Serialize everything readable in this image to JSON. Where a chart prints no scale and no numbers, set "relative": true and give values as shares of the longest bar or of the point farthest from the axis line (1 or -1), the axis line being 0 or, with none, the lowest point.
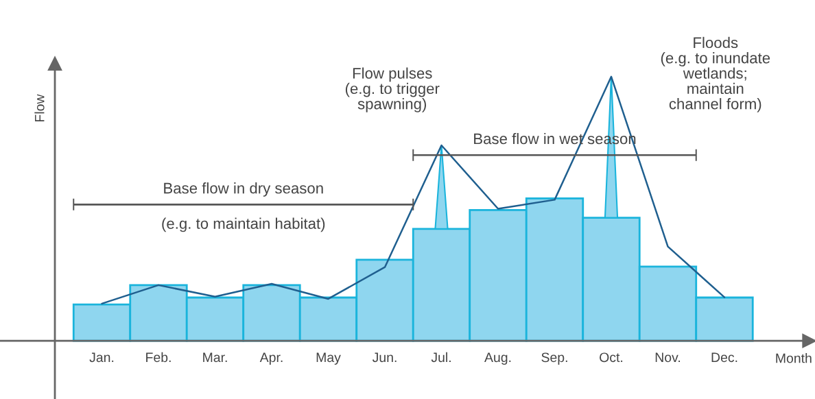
{
  "chart_data": {
    "type": "bar",
    "relative": true,
    "xlabel": "Month",
    "ylabel": "Flow",
    "categories": [
      "Jan.",
      "Feb.",
      "Mar.",
      "Apr.",
      "May",
      "Jun.",
      "Jul.",
      "Aug.",
      "Sep.",
      "Oct.",
      "Nov.",
      "Dec."
    ],
    "series": [
      {
        "color": "#8fd6ef",
        "values": [
          0.138,
          0.211,
          0.164,
          0.211,
          0.164,
          0.307,
          0.424,
          0.495,
          0.539,
          0.466,
          0.281,
          0.164
        ]
      },
      {
        "type": "line",
        "color": "#1f5f8f",
        "values": [
          0.141,
          0.211,
          0.167,
          0.216,
          0.159,
          0.279,
          0.74,
          0.5,
          0.534,
          1.0,
          0.357,
          0.165
        ]
      }
    ],
    "annotations": [
      "Base flow in dry season",
      "(e.g. to maintain habitat)",
      "Base flow in wet season",
      "Flow pulses\n(e.g. to trigger\nspawning)",
      "Floods\n(e.g. to inundate\nwetlands;\nmaintain\nchannel form)"
    ],
    "legend": false,
    "grid": false
  }
}
